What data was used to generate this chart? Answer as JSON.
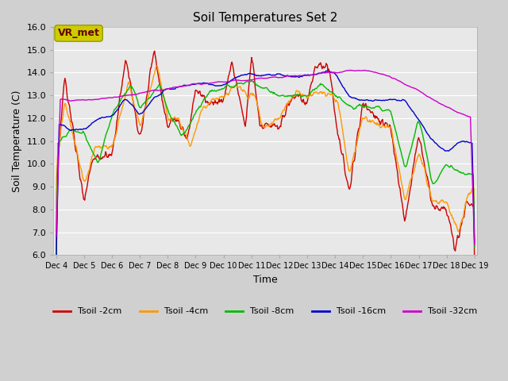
{
  "title": "Soil Temperatures Set 2",
  "xlabel": "Time",
  "ylabel": "Soil Temperature (C)",
  "ylim": [
    6.0,
    16.0
  ],
  "yticks": [
    6.0,
    7.0,
    8.0,
    9.0,
    10.0,
    11.0,
    12.0,
    13.0,
    14.0,
    15.0,
    16.0
  ],
  "line_colors": {
    "2cm": "#cc0000",
    "4cm": "#ff9900",
    "8cm": "#00bb00",
    "16cm": "#0000cc",
    "32cm": "#cc00cc"
  },
  "legend_labels": [
    "Tsoil -2cm",
    "Tsoil -4cm",
    "Tsoil -8cm",
    "Tsoil -16cm",
    "Tsoil -32cm"
  ],
  "fig_bg": "#d0d0d0",
  "plot_bg": "#e8e8e8",
  "grid_color": "#ffffff",
  "vr_met_label": "VR_met",
  "vr_met_box_color": "#cccc00",
  "vr_met_text_color": "#660000"
}
